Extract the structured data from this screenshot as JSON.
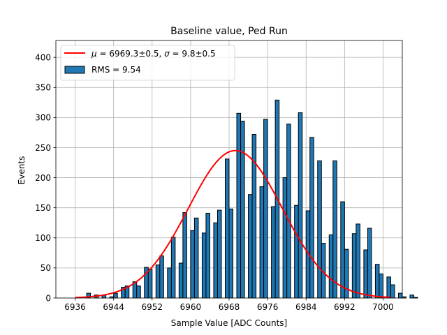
{
  "chart_data": {
    "type": "bar",
    "title": "Baseline value, Ped Run",
    "xlabel": "Sample Value [ADC Counts]",
    "ylabel": "Events",
    "xlim": [
      6932,
      7004
    ],
    "ylim": [
      0,
      428
    ],
    "xticks": [
      6936,
      6944,
      6952,
      6960,
      6968,
      6976,
      6984,
      6992,
      7000
    ],
    "yticks": [
      0,
      50,
      100,
      150,
      200,
      250,
      300,
      350,
      400
    ],
    "grid": true,
    "legend_position": "top-left",
    "bin_edges": {
      "start": 6936,
      "width": 0.8
    },
    "histogram": {
      "name": "RMS = 9.54",
      "color": "#1f77b4",
      "edgecolor": "#000000",
      "values": [
        0,
        0,
        0,
        8,
        0,
        5,
        0,
        5,
        0,
        2,
        8,
        0,
        18,
        20,
        0,
        27,
        20,
        0,
        51,
        48,
        0,
        55,
        70,
        0,
        50,
        101,
        0,
        58,
        142,
        0,
        112,
        133,
        0,
        108,
        141,
        0,
        125,
        146,
        0,
        231,
        148,
        0,
        307,
        294,
        0,
        172,
        272,
        0,
        185,
        297,
        0,
        152,
        329,
        0,
        200,
        289,
        0,
        154,
        308,
        0,
        145,
        267,
        0,
        228,
        91,
        0,
        105,
        228,
        0,
        160,
        81,
        0,
        107,
        123,
        0,
        80,
        116,
        0,
        56,
        40,
        0,
        35,
        22,
        0,
        8,
        2,
        0,
        5,
        1,
        0,
        0,
        0,
        0,
        0,
        0,
        0,
        0,
        0,
        0
      ]
    },
    "fit": {
      "name": "μ = 6969.3±0.5, σ = 9.8±0.5",
      "label_parts": [
        "μ",
        " = 6969.3±0.5, ",
        "σ",
        " = 9.8±0.5"
      ],
      "mu": 6969.3,
      "sigma": 9.8,
      "amplitude": 245,
      "x_range": [
        6936,
        7001.6
      ],
      "color": "#ff0000"
    }
  }
}
